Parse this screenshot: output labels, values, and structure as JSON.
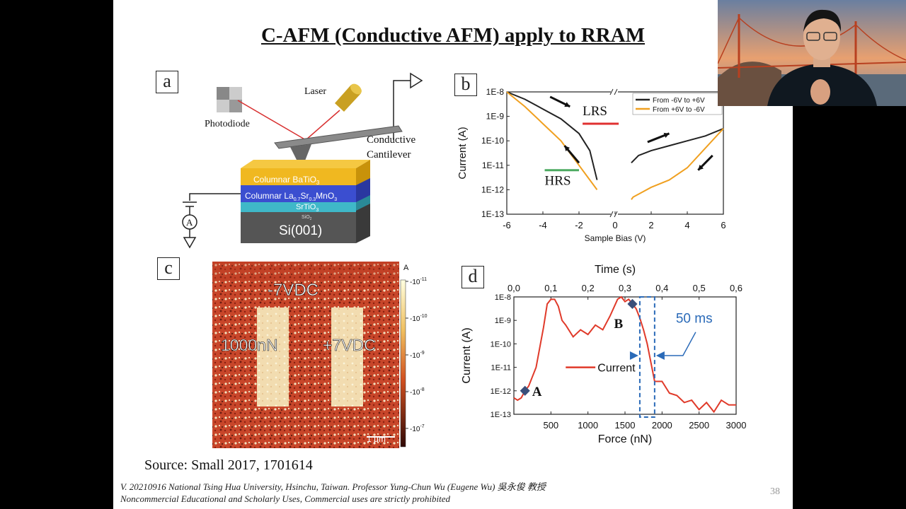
{
  "slide": {
    "title": "C-AFM (Conductive AFM) apply to RRAM",
    "source": "Source: Small 2017, 1701614",
    "footer_line1": "V. 20210916 National Tsing Hua University, Hsinchu, Taiwan. Professor Yung-Chun Wu (Eugene Wu) 吳永俊 教授",
    "footer_line2": "Noncommercial Educational and Scholarly Uses, Commercial uses are strictly prohibited",
    "page_number": "38"
  },
  "panel_a": {
    "label": "a",
    "photodiode": "Photodiode",
    "laser": "Laser",
    "cantilever_line1": "Conductive",
    "cantilever_line2": "Cantilever",
    "layer1": "Columnar BaTiO",
    "layer1_sub": "3",
    "layer2": "Columnar La",
    "layer2_sub1": "0.7",
    "layer2_mid": "Sr",
    "layer2_sub2": "0.3",
    "layer2_end": "MnO",
    "layer2_sub3": "3",
    "layer3": "SrTiO",
    "layer3_sub": "3",
    "layer4": "SiO",
    "layer4_sub": "2",
    "layer5": "Si(001)",
    "meter": "A"
  },
  "panel_c": {
    "label": "c",
    "text_top": "-7VDC",
    "text_left": "1000nN",
    "text_right": "+7VDC",
    "scalebar": "1 μm",
    "colorbar_unit": "A",
    "colorbar_ticks": [
      "-10",
      "-10",
      "-10",
      "-10",
      "-10"
    ],
    "colorbar_exps": [
      "-11",
      "-10",
      "-9",
      "-8",
      "-7"
    ]
  },
  "chart_data": [
    {
      "panel": "b",
      "type": "line",
      "xlabel": "Sample Bias (V)",
      "ylabel": "Current (A)",
      "xlim": [
        -6,
        6
      ],
      "ylim_log10": [
        -13,
        -8
      ],
      "yscale": "log",
      "x_ticks": [
        "-6",
        "-4",
        "-2",
        "0",
        "2",
        "4",
        "6"
      ],
      "y_ticks": [
        "1E-13",
        "1E-12",
        "1E-11",
        "1E-10",
        "1E-9",
        "1E-8"
      ],
      "legend_position": "top-right",
      "annotations": [
        "LRS",
        "HRS"
      ],
      "series": [
        {
          "name": "From -6V to +6V",
          "color": "#222222",
          "x": [
            -6,
            -5,
            -4,
            -3,
            -2,
            -1.4,
            -1,
            0.9,
            1.3,
            2,
            3,
            4,
            5,
            6
          ],
          "log10y": [
            -8,
            -8.3,
            -8.7,
            -9.1,
            -9.7,
            -10.4,
            -11.6,
            -10.9,
            -10.6,
            -10.4,
            -10.2,
            -10.0,
            -9.8,
            -9.5
          ]
        },
        {
          "name": "From +6V to -6V",
          "color": "#f0a020",
          "x": [
            6,
            5,
            4,
            3,
            2,
            1.5,
            1,
            0.9,
            -1,
            -1.5,
            -2,
            -2.5,
            -3,
            -4,
            -5,
            -6
          ],
          "log10y": [
            -9.5,
            -10.3,
            -11.1,
            -11.6,
            -11.9,
            -12.1,
            -12.3,
            -12.4,
            -12.0,
            -11.5,
            -11.0,
            -10.5,
            -10.0,
            -9.3,
            -8.6,
            -8
          ]
        }
      ]
    },
    {
      "panel": "d",
      "type": "line",
      "xlabel": "Force (nN)",
      "x2label": "Time (s)",
      "ylabel": "Current (A)",
      "xlim": [
        0,
        3000
      ],
      "x2lim": [
        0,
        0.6
      ],
      "ylim_log10": [
        -13,
        -8
      ],
      "yscale": "log",
      "x_ticks": [
        "500",
        "1000",
        "1500",
        "2000",
        "2500",
        "3000"
      ],
      "x2_ticks": [
        "0,0",
        "0,1",
        "0,2",
        "0,3",
        "0,4",
        "0,5",
        "0,6"
      ],
      "y_ticks": [
        "1E-13",
        "1E-12",
        "1E-11",
        "1E-10",
        "1E-9",
        "1E-8"
      ],
      "annotations": [
        "A",
        "B",
        "50 ms"
      ],
      "series": [
        {
          "name": "Current",
          "color": "#e03a2a",
          "x": [
            0,
            50,
            100,
            150,
            200,
            300,
            400,
            450,
            500,
            550,
            600,
            650,
            700,
            800,
            900,
            1000,
            1100,
            1200,
            1300,
            1400,
            1450,
            1500,
            1550,
            1600,
            1650,
            1700,
            1750,
            1800,
            1850,
            1900,
            2000,
            2100,
            2200,
            2300,
            2400,
            2500,
            2600,
            2700,
            2800,
            2900,
            3000
          ],
          "log10y": [
            -12.3,
            -12.4,
            -12.3,
            -12.0,
            -11.8,
            -11.0,
            -9.3,
            -8.3,
            -8.1,
            -8.1,
            -8.4,
            -9.0,
            -9.2,
            -9.7,
            -9.4,
            -9.6,
            -9.2,
            -9.4,
            -8.8,
            -8.1,
            -8.0,
            -8.2,
            -8.1,
            -8.3,
            -8.5,
            -8.9,
            -9.4,
            -10.0,
            -10.8,
            -11.6,
            -11.6,
            -12.1,
            -12.2,
            -12.5,
            -12.4,
            -12.8,
            -12.5,
            -12.9,
            -12.4,
            -12.6,
            -12.6
          ]
        }
      ]
    }
  ]
}
